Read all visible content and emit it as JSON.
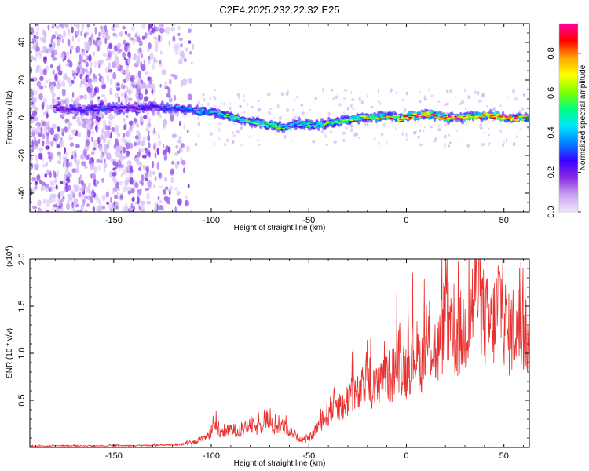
{
  "chart_data": [
    {
      "type": "heatmap",
      "title": "C2E4.2025.232.22.32.E25",
      "xlabel": "Height of straight line (km)",
      "ylabel": "Frequency (Hz)",
      "xlim": [
        -193,
        63
      ],
      "ylim": [
        -50,
        50
      ],
      "xticks": [
        -150,
        -100,
        -50,
        0,
        50
      ],
      "xtick_labels": [
        "-150",
        "-100",
        "-50",
        "0",
        "50"
      ],
      "yticks": [
        -40,
        -20,
        0,
        20,
        40
      ],
      "ytick_labels": [
        "-40",
        "-20",
        "0",
        "20",
        "40"
      ],
      "colorbar": {
        "label": "Normalized spectral amplitude",
        "range": [
          0.0,
          0.95
        ],
        "ticks": [
          0.0,
          0.2,
          0.4,
          0.6,
          0.8
        ],
        "tick_labels": [
          "0.0",
          "0.2",
          "0.4",
          "0.6",
          "0.8"
        ],
        "colormap": [
          "#f0e8fa",
          "#c8a2f0",
          "#8a2be2",
          "#3b00ff",
          "#0080ff",
          "#00e5ff",
          "#00ff7f",
          "#80ff00",
          "#ffff00",
          "#ffa500",
          "#ff0000",
          "#ff00a0"
        ]
      },
      "ridge": [
        {
          "x": -180,
          "f": 5,
          "a": 0.22
        },
        {
          "x": -170,
          "f": 4,
          "a": 0.25
        },
        {
          "x": -160,
          "f": 5,
          "a": 0.3
        },
        {
          "x": -150,
          "f": 5,
          "a": 0.25
        },
        {
          "x": -140,
          "f": 5,
          "a": 0.25
        },
        {
          "x": -130,
          "f": 6,
          "a": 0.3
        },
        {
          "x": -120,
          "f": 5,
          "a": 0.35
        },
        {
          "x": -110,
          "f": 4,
          "a": 0.4
        },
        {
          "x": -100,
          "f": 3,
          "a": 0.45
        },
        {
          "x": -92,
          "f": 1,
          "a": 0.5
        },
        {
          "x": -85,
          "f": -1,
          "a": 0.55
        },
        {
          "x": -78,
          "f": -2,
          "a": 0.55
        },
        {
          "x": -70,
          "f": -4,
          "a": 0.6
        },
        {
          "x": -62,
          "f": -5,
          "a": 0.55
        },
        {
          "x": -55,
          "f": -3,
          "a": 0.5
        },
        {
          "x": -48,
          "f": -4,
          "a": 0.5
        },
        {
          "x": -40,
          "f": -3,
          "a": 0.55
        },
        {
          "x": -33,
          "f": -2,
          "a": 0.6
        },
        {
          "x": -25,
          "f": 0,
          "a": 0.65
        },
        {
          "x": -18,
          "f": 0,
          "a": 0.7
        },
        {
          "x": -10,
          "f": 1,
          "a": 0.75
        },
        {
          "x": -3,
          "f": 0,
          "a": 0.8
        },
        {
          "x": 5,
          "f": 1,
          "a": 0.9
        },
        {
          "x": 12,
          "f": 2,
          "a": 0.85
        },
        {
          "x": 20,
          "f": 0,
          "a": 0.9
        },
        {
          "x": 28,
          "f": 0,
          "a": 0.85
        },
        {
          "x": 36,
          "f": 1,
          "a": 0.8
        },
        {
          "x": 44,
          "f": 1,
          "a": 0.9
        },
        {
          "x": 52,
          "f": 0,
          "a": 0.85
        },
        {
          "x": 60,
          "f": 0,
          "a": 0.8
        }
      ]
    },
    {
      "type": "line",
      "xlabel": "Height of straight line (km)",
      "ylabel": "SNR (10 * v/v)",
      "scale_label": "(x10",
      "scale_exponent": "4",
      "scale_suffix": ")",
      "color": "#e8312f",
      "xlim": [
        -193,
        63
      ],
      "ylim": [
        0,
        20000
      ],
      "xticks": [
        -150,
        -100,
        -50,
        0,
        50
      ],
      "xtick_labels": [
        "-150",
        "-100",
        "-50",
        "0",
        "50"
      ],
      "yticks": [
        5000,
        10000,
        15000,
        20000
      ],
      "ytick_labels": [
        "0.5",
        "1.0",
        "1.5",
        "2.0"
      ],
      "x": [
        -193,
        -180,
        -170,
        -160,
        -150,
        -140,
        -130,
        -120,
        -110,
        -102,
        -98,
        -95,
        -90,
        -85,
        -80,
        -76,
        -72,
        -68,
        -64,
        -60,
        -56,
        -52,
        -48,
        -44,
        -40,
        -36,
        -32,
        -28,
        -24,
        -20,
        -16,
        -12,
        -8,
        -4,
        0,
        4,
        8,
        12,
        16,
        20,
        24,
        28,
        32,
        36,
        40,
        44,
        48,
        52,
        56,
        60,
        63
      ],
      "y": [
        150,
        180,
        200,
        170,
        220,
        200,
        250,
        300,
        500,
        1300,
        2500,
        1500,
        2200,
        1800,
        2800,
        2200,
        3500,
        2200,
        2600,
        2000,
        1200,
        800,
        1500,
        3000,
        4000,
        5500,
        4500,
        7000,
        6000,
        8500,
        6500,
        9500,
        8000,
        10500,
        9000,
        11500,
        10000,
        12500,
        11000,
        15500,
        12000,
        13500,
        14500,
        19500,
        15000,
        14000,
        18000,
        13000,
        14500,
        13500,
        13000
      ]
    }
  ]
}
